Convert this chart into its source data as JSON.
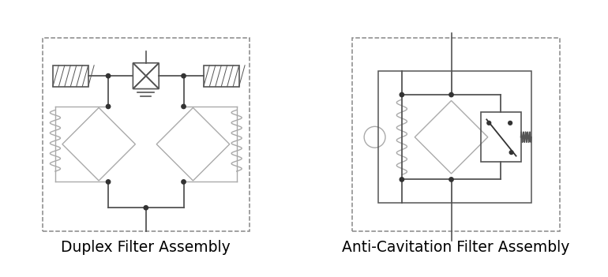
{
  "fig_width": 7.7,
  "fig_height": 3.51,
  "dpi": 100,
  "bg_color": "#ffffff",
  "lc": "#555555",
  "lc2": "#aaaaaa",
  "title1": "Duplex Filter Assembly",
  "title2": "Anti-Cavitation Filter Assembly",
  "title_fontsize": 13.5
}
